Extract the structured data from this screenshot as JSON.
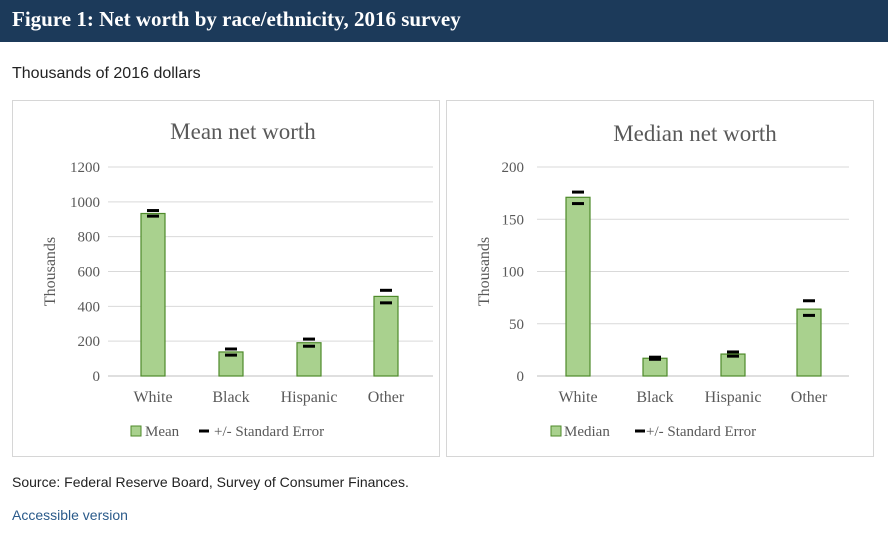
{
  "header": {
    "title": "Figure 1: Net worth by race/ethnicity, 2016 survey"
  },
  "subtitle": "Thousands of 2016 dollars",
  "source": "Source: Federal Reserve Board, Survey of Consumer Finances.",
  "link_label": "Accessible version",
  "colors": {
    "header_bg": "#1c3a5a",
    "bar_fill": "#a9d18e",
    "bar_stroke": "#4e8a2a",
    "error": "#000000",
    "grid": "#d9d9d9"
  },
  "chart_data": [
    {
      "type": "bar",
      "title": "Mean net worth",
      "ylabel": "Thousands",
      "xlabel": "",
      "categories": [
        "White",
        "Black",
        "Hispanic",
        "Other"
      ],
      "values": [
        933,
        138,
        191,
        457
      ],
      "error_low": [
        918,
        120,
        171,
        420
      ],
      "error_high": [
        950,
        155,
        212,
        492
      ],
      "ylim": [
        0,
        1200
      ],
      "yticks": [
        0,
        200,
        400,
        600,
        800,
        1000,
        1200
      ],
      "ytick_labels": [
        "0",
        "200",
        "400",
        "600",
        "800",
        "1000",
        "1200"
      ],
      "grid": true,
      "legend": {
        "series_label": "Mean",
        "error_label": "+/- Standard Error",
        "position": "bottom"
      }
    },
    {
      "type": "bar",
      "title": "Median net worth",
      "ylabel": "Thousands",
      "xlabel": "",
      "categories": [
        "White",
        "Black",
        "Hispanic",
        "Other"
      ],
      "values": [
        171,
        17,
        21,
        64
      ],
      "error_low": [
        165,
        16,
        19,
        58
      ],
      "error_high": [
        176,
        18,
        23,
        72
      ],
      "ylim": [
        0,
        200
      ],
      "yticks": [
        0,
        50,
        100,
        150,
        200
      ],
      "ytick_labels": [
        "0",
        "50",
        "100",
        "150",
        "200"
      ],
      "grid": true,
      "legend": {
        "series_label": "Median",
        "error_label": "+/- Standard Error",
        "position": "bottom"
      }
    }
  ]
}
